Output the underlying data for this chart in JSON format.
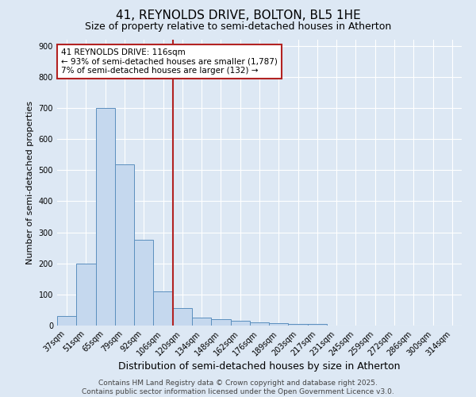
{
  "title": "41, REYNOLDS DRIVE, BOLTON, BL5 1HE",
  "subtitle": "Size of property relative to semi-detached houses in Atherton",
  "xlabel": "Distribution of semi-detached houses by size in Atherton",
  "ylabel": "Number of semi-detached properties",
  "categories": [
    "37sqm",
    "51sqm",
    "65sqm",
    "79sqm",
    "92sqm",
    "106sqm",
    "120sqm",
    "134sqm",
    "148sqm",
    "162sqm",
    "176sqm",
    "189sqm",
    "203sqm",
    "217sqm",
    "231sqm",
    "245sqm",
    "259sqm",
    "272sqm",
    "286sqm",
    "300sqm",
    "314sqm"
  ],
  "values": [
    30,
    200,
    700,
    520,
    275,
    110,
    55,
    25,
    20,
    15,
    10,
    8,
    5,
    5,
    0,
    0,
    0,
    0,
    0,
    0,
    0
  ],
  "bar_color": "#c5d8ee",
  "bar_edge_color": "#5b8fbe",
  "property_line_label": "41 REYNOLDS DRIVE: 116sqm",
  "annotation_line1": "← 93% of semi-detached houses are smaller (1,787)",
  "annotation_line2": "7% of semi-detached houses are larger (132) →",
  "vline_color": "#b22222",
  "annotation_box_edge_color": "#b22222",
  "ylim": [
    0,
    920
  ],
  "yticks": [
    0,
    100,
    200,
    300,
    400,
    500,
    600,
    700,
    800,
    900
  ],
  "bg_color": "#dde8f4",
  "plot_bg_color": "#dde8f4",
  "grid_color": "#ffffff",
  "footer_line1": "Contains HM Land Registry data © Crown copyright and database right 2025.",
  "footer_line2": "Contains public sector information licensed under the Open Government Licence v3.0.",
  "title_fontsize": 11,
  "subtitle_fontsize": 9,
  "xlabel_fontsize": 9,
  "ylabel_fontsize": 8,
  "tick_fontsize": 7,
  "footer_fontsize": 6.5,
  "annot_fontsize": 7.5
}
